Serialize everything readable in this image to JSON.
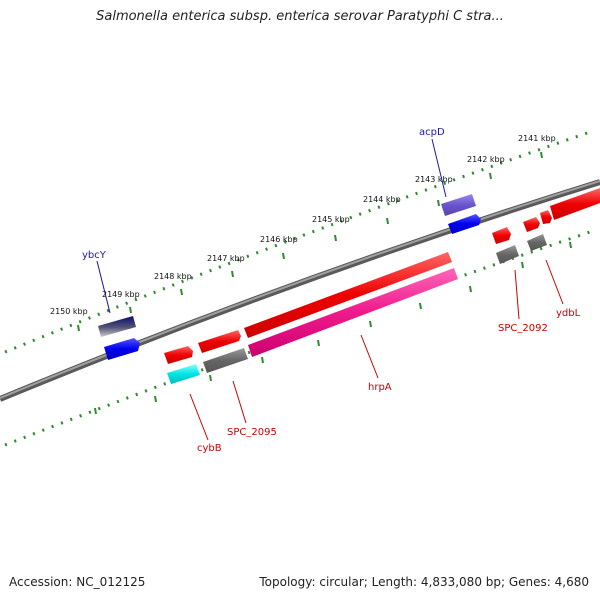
{
  "title": "Salmonella enterica subsp. enterica serovar Paratyphi C stra...",
  "footer": {
    "accession": "Accession: NC_012125",
    "summary": "Topology: circular; Length: 4,833,080 bp; Genes: 4,680"
  },
  "scale_labels": [
    "2141 kbp",
    "2142 kbp",
    "2143 kbp",
    "2144 kbp",
    "2145 kbp",
    "2146 kbp",
    "2147 kbp",
    "2148 kbp",
    "2149 kbp",
    "2150 kbp"
  ],
  "genes": [
    {
      "name": "ybcY",
      "color": "#1a1aa0"
    },
    {
      "name": "acpD",
      "color": "#1a1aa0"
    },
    {
      "name": "cybB",
      "color": "#cc0000"
    },
    {
      "name": "SPC_2095",
      "color": "#cc0000"
    },
    {
      "name": "hrpA",
      "color": "#cc0000"
    },
    {
      "name": "SPC_2092",
      "color": "#cc0000"
    },
    {
      "name": "ydbL",
      "color": "#cc0000"
    }
  ],
  "colors": {
    "backbone": "#808080",
    "tick_dots": "#2e8b2e",
    "gene_red": "#ee0000",
    "gene_gray": "#666666",
    "gene_blue": "#0000ee",
    "gene_navy": "#0b0b70",
    "gene_purple": "#6a55cc",
    "gene_cyan": "#00e5e5",
    "gene_pink": "#ee1a8a"
  }
}
